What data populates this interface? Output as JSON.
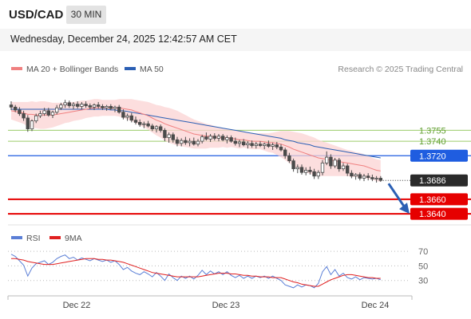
{
  "header": {
    "symbol": "USD/CAD",
    "timeframe": "30 MIN"
  },
  "timestamp": "Wednesday, December 24, 2025 12:42:57 AM CET",
  "legend": {
    "ma20": "MA 20 + Bollinger Bands",
    "ma50": "MA 50",
    "copyright": "Research © 2025 Trading Central"
  },
  "rsi_legend": {
    "rsi": "RSI",
    "ma9": "9MA"
  },
  "colors": {
    "ma20": "#f08080",
    "ma50": "#2b5fb4",
    "bollinger": "#fbd3d3",
    "support": "#e60000",
    "pivot": "#1f5de0",
    "resistance": "#9ccc6a",
    "candle": "#4a4a4a",
    "rsi": "#5b7fd6",
    "rsi_ma": "#e02020",
    "arrow": "#2b5fb4"
  },
  "chart_data": [
    {
      "type": "candlestick",
      "title": "USD/CAD",
      "x_ticks": [
        "Dec 22",
        "Dec 23",
        "Dec 24"
      ],
      "ylim": [
        1.3628,
        1.3828
      ],
      "last_price": {
        "label": "1.3686",
        "value": 1.3686
      },
      "levels": [
        {
          "label": "1.3755",
          "value": 1.3755,
          "kind": "resistance"
        },
        {
          "label": "1.3740",
          "value": 1.374,
          "kind": "resistance"
        },
        {
          "label": "1.3720",
          "value": 1.372,
          "kind": "pivot"
        },
        {
          "label": "1.3660",
          "value": 1.366,
          "kind": "support"
        },
        {
          "label": "1.3640",
          "value": 1.364,
          "kind": "support"
        }
      ],
      "ohlc": [
        [
          1.379,
          1.3795,
          1.3783,
          1.3787
        ],
        [
          1.3787,
          1.379,
          1.378,
          1.3783
        ],
        [
          1.3783,
          1.3787,
          1.3775,
          1.3778
        ],
        [
          1.3778,
          1.3782,
          1.3768,
          1.3772
        ],
        [
          1.3772,
          1.3776,
          1.3753,
          1.3757
        ],
        [
          1.3757,
          1.377,
          1.3754,
          1.3768
        ],
        [
          1.3768,
          1.3778,
          1.3765,
          1.3775
        ],
        [
          1.3775,
          1.3782,
          1.3772,
          1.3778
        ],
        [
          1.3778,
          1.3786,
          1.3775,
          1.3782
        ],
        [
          1.3782,
          1.3786,
          1.3774,
          1.3776
        ],
        [
          1.3776,
          1.3782,
          1.3772,
          1.378
        ],
        [
          1.378,
          1.379,
          1.3777,
          1.3786
        ],
        [
          1.3786,
          1.3793,
          1.3783,
          1.379
        ],
        [
          1.379,
          1.3797,
          1.3786,
          1.3793
        ],
        [
          1.3793,
          1.3796,
          1.3786,
          1.3789
        ],
        [
          1.3789,
          1.3794,
          1.3784,
          1.3791
        ],
        [
          1.3791,
          1.3795,
          1.3785,
          1.3788
        ],
        [
          1.3788,
          1.3794,
          1.3784,
          1.3791
        ],
        [
          1.3791,
          1.3795,
          1.3786,
          1.3789
        ],
        [
          1.3789,
          1.3792,
          1.3784,
          1.3787
        ],
        [
          1.3787,
          1.3792,
          1.3783,
          1.379
        ],
        [
          1.379,
          1.3794,
          1.3785,
          1.3788
        ],
        [
          1.3788,
          1.3791,
          1.3783,
          1.3786
        ],
        [
          1.3786,
          1.379,
          1.3782,
          1.3788
        ],
        [
          1.3788,
          1.3791,
          1.3783,
          1.3785
        ],
        [
          1.3785,
          1.3789,
          1.378,
          1.3787
        ],
        [
          1.3787,
          1.379,
          1.3778,
          1.378
        ],
        [
          1.378,
          1.3784,
          1.377,
          1.3773
        ],
        [
          1.3773,
          1.3778,
          1.3768,
          1.3775
        ],
        [
          1.3775,
          1.3779,
          1.3766,
          1.3769
        ],
        [
          1.3769,
          1.3774,
          1.3763,
          1.3766
        ],
        [
          1.3766,
          1.377,
          1.376,
          1.3763
        ],
        [
          1.3763,
          1.3767,
          1.3758,
          1.3764
        ],
        [
          1.3764,
          1.3768,
          1.3759,
          1.3761
        ],
        [
          1.3761,
          1.3764,
          1.3754,
          1.3757
        ],
        [
          1.3757,
          1.3762,
          1.3752,
          1.376
        ],
        [
          1.376,
          1.3763,
          1.3752,
          1.3755
        ],
        [
          1.3755,
          1.3758,
          1.374,
          1.3745
        ],
        [
          1.3745,
          1.3752,
          1.3738,
          1.3749
        ],
        [
          1.3749,
          1.3752,
          1.3738,
          1.3742
        ],
        [
          1.3742,
          1.3746,
          1.3733,
          1.3737
        ],
        [
          1.3737,
          1.3744,
          1.3733,
          1.3741
        ],
        [
          1.3741,
          1.3746,
          1.3735,
          1.3738
        ],
        [
          1.3738,
          1.3744,
          1.3733,
          1.374
        ],
        [
          1.374,
          1.3745,
          1.3734,
          1.3736
        ],
        [
          1.3736,
          1.3743,
          1.3733,
          1.374
        ],
        [
          1.374,
          1.3749,
          1.3737,
          1.3746
        ],
        [
          1.3746,
          1.3752,
          1.3741,
          1.3743
        ],
        [
          1.3743,
          1.375,
          1.3739,
          1.3747
        ],
        [
          1.3747,
          1.3751,
          1.3741,
          1.3744
        ],
        [
          1.3744,
          1.375,
          1.374,
          1.3747
        ],
        [
          1.3747,
          1.375,
          1.374,
          1.3742
        ],
        [
          1.3742,
          1.3748,
          1.3737,
          1.3745
        ],
        [
          1.3745,
          1.3748,
          1.3738,
          1.374
        ],
        [
          1.374,
          1.3745,
          1.3734,
          1.3737
        ],
        [
          1.3737,
          1.3742,
          1.3732,
          1.3739
        ],
        [
          1.3739,
          1.3743,
          1.3733,
          1.3735
        ],
        [
          1.3735,
          1.374,
          1.373,
          1.3737
        ],
        [
          1.3737,
          1.3741,
          1.3731,
          1.3734
        ],
        [
          1.3734,
          1.3739,
          1.373,
          1.3736
        ],
        [
          1.3736,
          1.374,
          1.3732,
          1.3734
        ],
        [
          1.3734,
          1.3738,
          1.3729,
          1.3736
        ],
        [
          1.3736,
          1.3741,
          1.3731,
          1.3733
        ],
        [
          1.3733,
          1.3738,
          1.3728,
          1.3735
        ],
        [
          1.3735,
          1.3739,
          1.3729,
          1.3732
        ],
        [
          1.3732,
          1.3736,
          1.3726,
          1.3728
        ],
        [
          1.3728,
          1.3731,
          1.3716,
          1.372
        ],
        [
          1.372,
          1.3724,
          1.371,
          1.3713
        ],
        [
          1.3713,
          1.3716,
          1.3698,
          1.3702
        ],
        [
          1.3702,
          1.3708,
          1.3696,
          1.3704
        ],
        [
          1.3704,
          1.3708,
          1.3694,
          1.3697
        ],
        [
          1.3697,
          1.3704,
          1.3693,
          1.37
        ],
        [
          1.37,
          1.3705,
          1.3694,
          1.3698
        ],
        [
          1.3698,
          1.3702,
          1.3688,
          1.3692
        ],
        [
          1.3692,
          1.37,
          1.3688,
          1.3697
        ],
        [
          1.3697,
          1.3714,
          1.3693,
          1.371
        ],
        [
          1.371,
          1.3726,
          1.3707,
          1.3718
        ],
        [
          1.3718,
          1.3722,
          1.3702,
          1.3706
        ],
        [
          1.3706,
          1.3717,
          1.3703,
          1.3714
        ],
        [
          1.3714,
          1.3717,
          1.3698,
          1.3702
        ],
        [
          1.3702,
          1.371,
          1.3699,
          1.3706
        ],
        [
          1.3706,
          1.3709,
          1.3692,
          1.3696
        ],
        [
          1.3696,
          1.37,
          1.3689,
          1.3692
        ],
        [
          1.3692,
          1.3696,
          1.3687,
          1.3694
        ],
        [
          1.3694,
          1.3697,
          1.3686,
          1.3689
        ],
        [
          1.3689,
          1.3695,
          1.3685,
          1.3692
        ],
        [
          1.3692,
          1.3696,
          1.3686,
          1.369
        ],
        [
          1.369,
          1.3694,
          1.3685,
          1.3688
        ],
        [
          1.3688,
          1.3692,
          1.3683,
          1.3689
        ],
        [
          1.3689,
          1.3692,
          1.3684,
          1.3686
        ]
      ],
      "ma20": [
        1.3782,
        1.3781,
        1.378,
        1.3779,
        1.3777,
        1.3777,
        1.3776,
        1.3776,
        1.3776,
        1.3776,
        1.3776,
        1.3777,
        1.3778,
        1.3779,
        1.378,
        1.3781,
        1.3782,
        1.3783,
        1.3784,
        1.3785,
        1.3786,
        1.3786,
        1.3786,
        1.3786,
        1.3786,
        1.3786,
        1.3786,
        1.3785,
        1.3784,
        1.3783,
        1.3781,
        1.3779,
        1.3777,
        1.3775,
        1.3772,
        1.3769,
        1.3767,
        1.3764,
        1.3762,
        1.376,
        1.3758,
        1.3756,
        1.3754,
        1.3752,
        1.375,
        1.3749,
        1.3748,
        1.3747,
        1.3747,
        1.3746,
        1.3745,
        1.3745,
        1.3744,
        1.3744,
        1.3743,
        1.3742,
        1.3742,
        1.3741,
        1.374,
        1.374,
        1.374,
        1.3739,
        1.3738,
        1.3738,
        1.3737,
        1.3736,
        1.3734,
        1.3732,
        1.3729,
        1.3727,
        1.3725,
        1.3723,
        1.3721,
        1.3719,
        1.3717,
        1.3716,
        1.3715,
        1.3714,
        1.3713,
        1.3712,
        1.3711,
        1.371,
        1.3709,
        1.3708,
        1.3707,
        1.3706,
        1.3704,
        1.3702,
        1.37,
        1.3699
      ],
      "ma50": [
        1.3784,
        1.3784,
        1.3784,
        1.3784,
        1.3784,
        1.3784,
        1.3784,
        1.3784,
        1.3784,
        1.3784,
        1.3784,
        1.3784,
        1.3784,
        1.3784,
        1.3784,
        1.3784,
        1.3784,
        1.3784,
        1.3784,
        1.3784,
        1.3784,
        1.3784,
        1.3784,
        1.3784,
        1.3783,
        1.3783,
        1.3782,
        1.3782,
        1.3781,
        1.378,
        1.3779,
        1.3778,
        1.3777,
        1.3776,
        1.3775,
        1.3774,
        1.3773,
        1.3772,
        1.3771,
        1.377,
        1.3769,
        1.3768,
        1.3767,
        1.3766,
        1.3765,
        1.3764,
        1.3763,
        1.3762,
        1.3761,
        1.376,
        1.3759,
        1.3758,
        1.3757,
        1.3756,
        1.3755,
        1.3754,
        1.3753,
        1.3752,
        1.3751,
        1.375,
        1.3749,
        1.3748,
        1.3747,
        1.3746,
        1.3745,
        1.3744,
        1.3742,
        1.3741,
        1.374,
        1.3738,
        1.3737,
        1.3736,
        1.3735,
        1.3733,
        1.3732,
        1.3731,
        1.373,
        1.3729,
        1.3728,
        1.3727,
        1.3726,
        1.3725,
        1.3724,
        1.3723,
        1.3722,
        1.3721,
        1.372,
        1.3719,
        1.3718,
        1.3717
      ],
      "band_width": [
        0.0012,
        0.0013,
        0.0014,
        0.0015,
        0.0017,
        0.0018,
        0.0018,
        0.0019,
        0.0019,
        0.0018,
        0.0017,
        0.0016,
        0.0015,
        0.0014,
        0.0014,
        0.0013,
        0.0013,
        0.0013,
        0.0012,
        0.0012,
        0.0012,
        0.0012,
        0.0011,
        0.0011,
        0.0011,
        0.0011,
        0.0012,
        0.0013,
        0.0014,
        0.0015,
        0.0016,
        0.0017,
        0.0018,
        0.0019,
        0.002,
        0.0021,
        0.0022,
        0.0023,
        0.0024,
        0.0024,
        0.0024,
        0.0023,
        0.0022,
        0.0021,
        0.002,
        0.0019,
        0.0018,
        0.0017,
        0.0016,
        0.0015,
        0.0014,
        0.0013,
        0.0013,
        0.0012,
        0.0012,
        0.0012,
        0.0011,
        0.0011,
        0.0011,
        0.0011,
        0.0011,
        0.0012,
        0.0013,
        0.0014,
        0.0016,
        0.0018,
        0.002,
        0.0022,
        0.0024,
        0.0025,
        0.0026,
        0.0026,
        0.0026,
        0.0026,
        0.0025,
        0.0024,
        0.0023,
        0.0022,
        0.0021,
        0.002,
        0.0019,
        0.0018,
        0.0018,
        0.0017,
        0.0017,
        0.0016,
        0.0016,
        0.0015,
        0.0015,
        0.0015
      ]
    },
    {
      "type": "line",
      "title": "RSI",
      "y_ticks": [
        70,
        50,
        30
      ],
      "ylim": [
        10,
        80
      ],
      "series": [
        {
          "name": "RSI",
          "values": [
            66,
            63,
            57,
            51,
            36,
            47,
            53,
            55,
            57,
            52,
            55,
            60,
            63,
            65,
            60,
            62,
            58,
            61,
            59,
            57,
            60,
            58,
            56,
            58,
            55,
            57,
            52,
            45,
            48,
            43,
            40,
            38,
            42,
            39,
            35,
            41,
            36,
            30,
            39,
            34,
            30,
            36,
            33,
            36,
            32,
            37,
            44,
            38,
            43,
            39,
            42,
            38,
            42,
            37,
            34,
            37,
            33,
            36,
            33,
            36,
            34,
            36,
            33,
            36,
            33,
            30,
            24,
            22,
            20,
            24,
            21,
            24,
            23,
            20,
            26,
            42,
            49,
            38,
            45,
            36,
            40,
            34,
            32,
            35,
            31,
            34,
            33,
            32,
            33,
            31
          ]
        },
        {
          "name": "9MA",
          "values": [
            60,
            60,
            59,
            58,
            56,
            55,
            54,
            53,
            52,
            52,
            52,
            53,
            54,
            55,
            56,
            57,
            58,
            59,
            60,
            60,
            60,
            59,
            59,
            58,
            58,
            57,
            56,
            55,
            53,
            51,
            49,
            47,
            45,
            43,
            41,
            40,
            39,
            38,
            37,
            36,
            35,
            35,
            35,
            35,
            35,
            35,
            36,
            37,
            38,
            39,
            40,
            40,
            40,
            39,
            39,
            38,
            37,
            37,
            36,
            36,
            35,
            35,
            35,
            34,
            34,
            34,
            32,
            30,
            28,
            27,
            25,
            24,
            23,
            22,
            22,
            25,
            28,
            31,
            33,
            35,
            37,
            38,
            38,
            37,
            36,
            35,
            34,
            34,
            33,
            33
          ]
        }
      ]
    }
  ]
}
